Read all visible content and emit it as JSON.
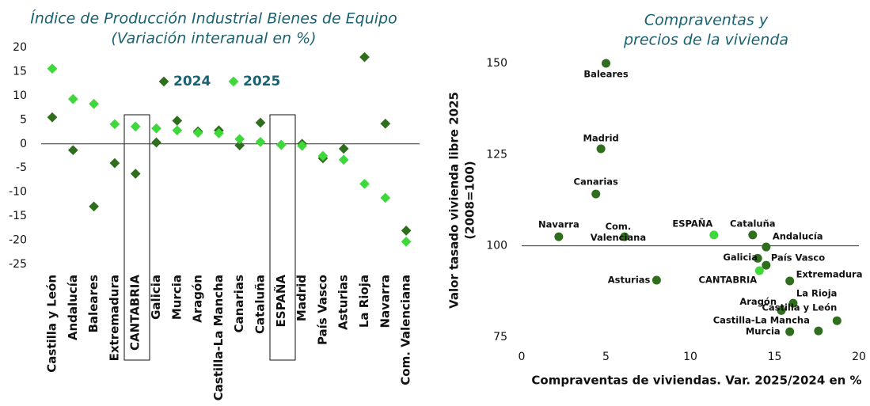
{
  "chart_data": [
    {
      "type": "scatter-cat",
      "title": [
        "Índice de Producción Industrial Bienes de Equipo",
        "(Variación interanual en %)"
      ],
      "categories": [
        "Castilla y León",
        "Andalucía",
        "Baleares",
        "Extremadura",
        "CANTABRIA",
        "Galicia",
        "Murcia",
        "Aragón",
        "Castilla-La Mancha",
        "Canarias",
        "Cataluña",
        "ESPAÑA",
        "Madrid",
        "País Vasco",
        "Asturias",
        "La Rioja",
        "Navarra",
        "Com. Valenciana"
      ],
      "series": [
        {
          "name": "2024",
          "color": "#2f6e1c",
          "values": [
            5.5,
            -1.3,
            -13,
            -4,
            -6.2,
            0.3,
            4.8,
            2.6,
            2.8,
            -0.3,
            4.4,
            -0.2,
            0,
            -3,
            -1,
            18,
            4.2,
            -18
          ]
        },
        {
          "name": "2025",
          "color": "#3fd83a",
          "values": [
            15.6,
            9.3,
            8.3,
            4.1,
            3.6,
            3.2,
            2.8,
            2.3,
            2.2,
            1,
            0.4,
            -0.2,
            -0.4,
            -2.5,
            -3.3,
            -8.3,
            -11.2,
            -20.3
          ]
        }
      ],
      "ylim": [
        -25,
        20
      ],
      "yticks": [
        20,
        15,
        10,
        5,
        0,
        -5,
        -10,
        -15,
        -20,
        -25
      ]
    },
    {
      "type": "scatter",
      "title": [
        "Compraventas y",
        "precios de la vivienda"
      ],
      "xlabel": "Compraventas de viviendas. Var. 2025/2024 en %",
      "ylabel": [
        "Valor tasado vivienda libre 2025",
        "(2008=100)"
      ],
      "labels": [
        "Baleares",
        "Madrid",
        "Canarias",
        "Navarra",
        "Com. Valenciana",
        "ESPAÑA",
        "Cataluña",
        "Andalucía",
        "Galicia",
        "País Vasco",
        "CANTABRIA",
        "Asturias",
        "Extremadura",
        "La Rioja",
        "Aragón",
        "Castilla y León",
        "Castilla-La Mancha",
        "Murcia"
      ],
      "x": [
        5,
        4.7,
        4.4,
        2.2,
        6.1,
        11.4,
        13.7,
        14.5,
        14,
        14.5,
        14.1,
        8,
        15.9,
        16.1,
        15.4,
        18.7,
        17.6,
        15.9
      ],
      "values": [
        150,
        126.6,
        114.2,
        102.5,
        102.5,
        103,
        103,
        99.7,
        96.6,
        94.7,
        93.2,
        90.6,
        90.4,
        84.3,
        82.3,
        79.5,
        76.7,
        76.5
      ],
      "colors": [
        "#2f6e1c",
        "#2f6e1c",
        "#2f6e1c",
        "#2f6e1c",
        "#2f6e1c",
        "#3fd83a",
        "#2f6e1c",
        "#2f6e1c",
        "#2f6e1c",
        "#2f6e1c",
        "#3fd83a",
        "#2f6e1c",
        "#2f6e1c",
        "#2f6e1c",
        "#2f6e1c",
        "#2f6e1c",
        "#2f6e1c",
        "#2f6e1c"
      ],
      "xlim": [
        0,
        20
      ],
      "xticks": [
        0,
        5,
        10,
        15,
        20
      ],
      "ylim": [
        75,
        150
      ],
      "yticks": [
        75,
        100,
        125,
        150
      ]
    }
  ]
}
